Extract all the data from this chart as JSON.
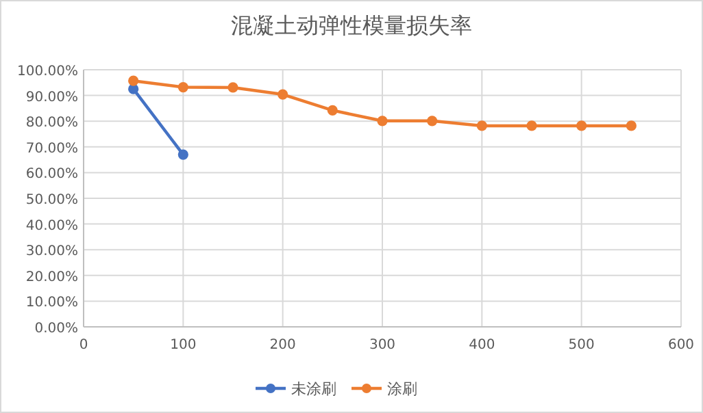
{
  "chart_data": {
    "type": "line",
    "title": "混凝土动弹性模量损失率",
    "legend": "bottom",
    "grid": true,
    "marker": "circle",
    "line_style": "solid",
    "xlim": [
      0,
      600
    ],
    "xticks": [
      0,
      100,
      200,
      300,
      400,
      500,
      600
    ],
    "ylim": [
      0,
      100
    ],
    "yticks": [
      {
        "value": 0,
        "label": "0.00%"
      },
      {
        "value": 10,
        "label": "10.00%"
      },
      {
        "value": 20,
        "label": "20.00%"
      },
      {
        "value": 30,
        "label": "30.00%"
      },
      {
        "value": 40,
        "label": "40.00%"
      },
      {
        "value": 50,
        "label": "50.00%"
      },
      {
        "value": 60,
        "label": "60.00%"
      },
      {
        "value": 70,
        "label": "70.00%"
      },
      {
        "value": 80,
        "label": "80.00%"
      },
      {
        "value": 90,
        "label": "90.00%"
      },
      {
        "value": 100,
        "label": "100.00%"
      }
    ],
    "series": [
      {
        "name": "未涂刷",
        "color": "#4472c4",
        "x": [
          50,
          100
        ],
        "values": [
          92.5,
          67.0
        ]
      },
      {
        "name": "涂刷",
        "color": "#ed7d31",
        "x": [
          50,
          100,
          150,
          200,
          250,
          300,
          350,
          400,
          450,
          500,
          550
        ],
        "values": [
          95.7,
          93.2,
          93.1,
          90.4,
          84.2,
          80.1,
          80.1,
          78.2,
          78.2,
          78.2,
          78.2
        ]
      }
    ]
  }
}
